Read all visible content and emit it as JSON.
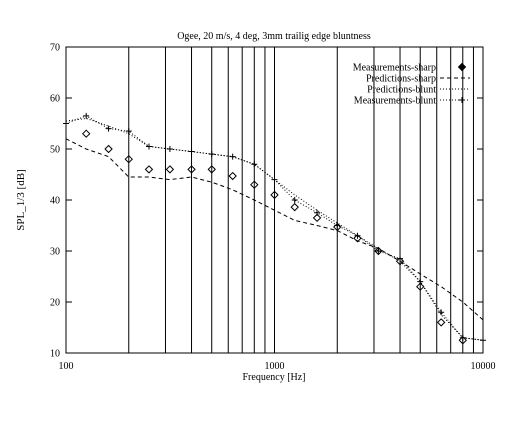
{
  "chart_data": {
    "type": "line",
    "title": "Ogee, 20 m/s, 4 deg, 3mm trailig edge bluntness",
    "xlabel": "Frequency [Hz]",
    "ylabel": "SPL_1/3 [dB]",
    "xscale": "log",
    "xlim": [
      100,
      10000
    ],
    "ylim": [
      10,
      70
    ],
    "xticks": [
      100,
      1000,
      10000
    ],
    "yticks": [
      10,
      20,
      30,
      40,
      50,
      60,
      70
    ],
    "xgrid": [
      200,
      300,
      400,
      500,
      600,
      700,
      800,
      900,
      1000,
      2000,
      3000,
      4000,
      5000,
      6000,
      7000,
      8000,
      9000
    ],
    "legend": "upper right",
    "x": [
      100,
      125,
      160,
      200,
      250,
      315,
      400,
      500,
      630,
      800,
      1000,
      1250,
      1600,
      2000,
      2500,
      3150,
      4000,
      5000,
      6300,
      8000,
      10000
    ],
    "series": [
      {
        "name": "Measurements-sharp",
        "color": "#000000",
        "style": "marker-diamond",
        "values": [
          null,
          53,
          50,
          48,
          46,
          46,
          46,
          46,
          44.7,
          43,
          41,
          38.6,
          36.5,
          34.7,
          32.5,
          30,
          28,
          23,
          16,
          12.5,
          null
        ]
      },
      {
        "name": "Predictions-sharp",
        "color": "#000000",
        "style": "dashed",
        "values": [
          52,
          50,
          48.5,
          44.5,
          44.5,
          44,
          44.5,
          43.5,
          42,
          40,
          38,
          36,
          35,
          34,
          32,
          30.5,
          28,
          25.5,
          23,
          20,
          16.5
        ]
      },
      {
        "name": "Predictions-blunt",
        "color": "#000000",
        "style": "dotted",
        "values": [
          55.5,
          56,
          54.5,
          53,
          50.5,
          50,
          49.5,
          49,
          48.5,
          47,
          44,
          41,
          38,
          35.5,
          33,
          30.5,
          28,
          24,
          17.5,
          13,
          12.5
        ]
      },
      {
        "name": "Measurements-blunt",
        "color": "#000000",
        "style": "dotted-plus",
        "values": [
          55,
          56.5,
          54,
          53.5,
          50.5,
          50,
          49.5,
          49,
          48.5,
          47,
          44,
          40,
          37.5,
          35,
          33,
          30,
          28.5,
          24,
          18,
          13,
          12.5
        ]
      }
    ]
  }
}
